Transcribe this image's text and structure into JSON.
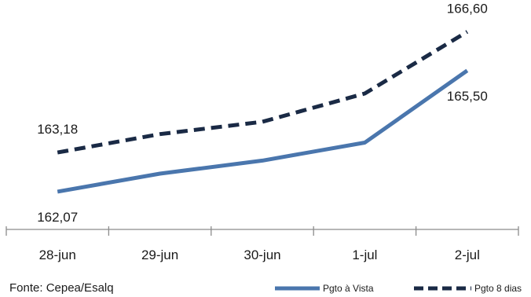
{
  "chart_data": {
    "type": "line",
    "categories": [
      "28-jun",
      "29-jun",
      "30-jun",
      "1-jul",
      "2-jul"
    ],
    "series": [
      {
        "name": "Pgto à Vista",
        "values": [
          162.07,
          162.58,
          162.95,
          163.46,
          165.5
        ],
        "color": "#4a76ad",
        "style": "solid"
      },
      {
        "name": "Pgto 8 dias",
        "values": [
          163.18,
          163.7,
          164.05,
          164.85,
          166.6
        ],
        "color": "#1a2a45",
        "style": "dashed"
      }
    ],
    "data_labels": [
      {
        "series": 1,
        "index": 0,
        "text": "163,18"
      },
      {
        "series": 0,
        "index": 0,
        "text": "162,07"
      },
      {
        "series": 1,
        "index": 4,
        "text": "166,60"
      },
      {
        "series": 0,
        "index": 4,
        "text": "165,50"
      }
    ],
    "ylim": [
      161.0,
      167.5
    ],
    "grid": false,
    "legend": "bottom-right",
    "source": "Fonte: Cepea/Esalq",
    "title": "",
    "xlabel": "",
    "ylabel": ""
  }
}
